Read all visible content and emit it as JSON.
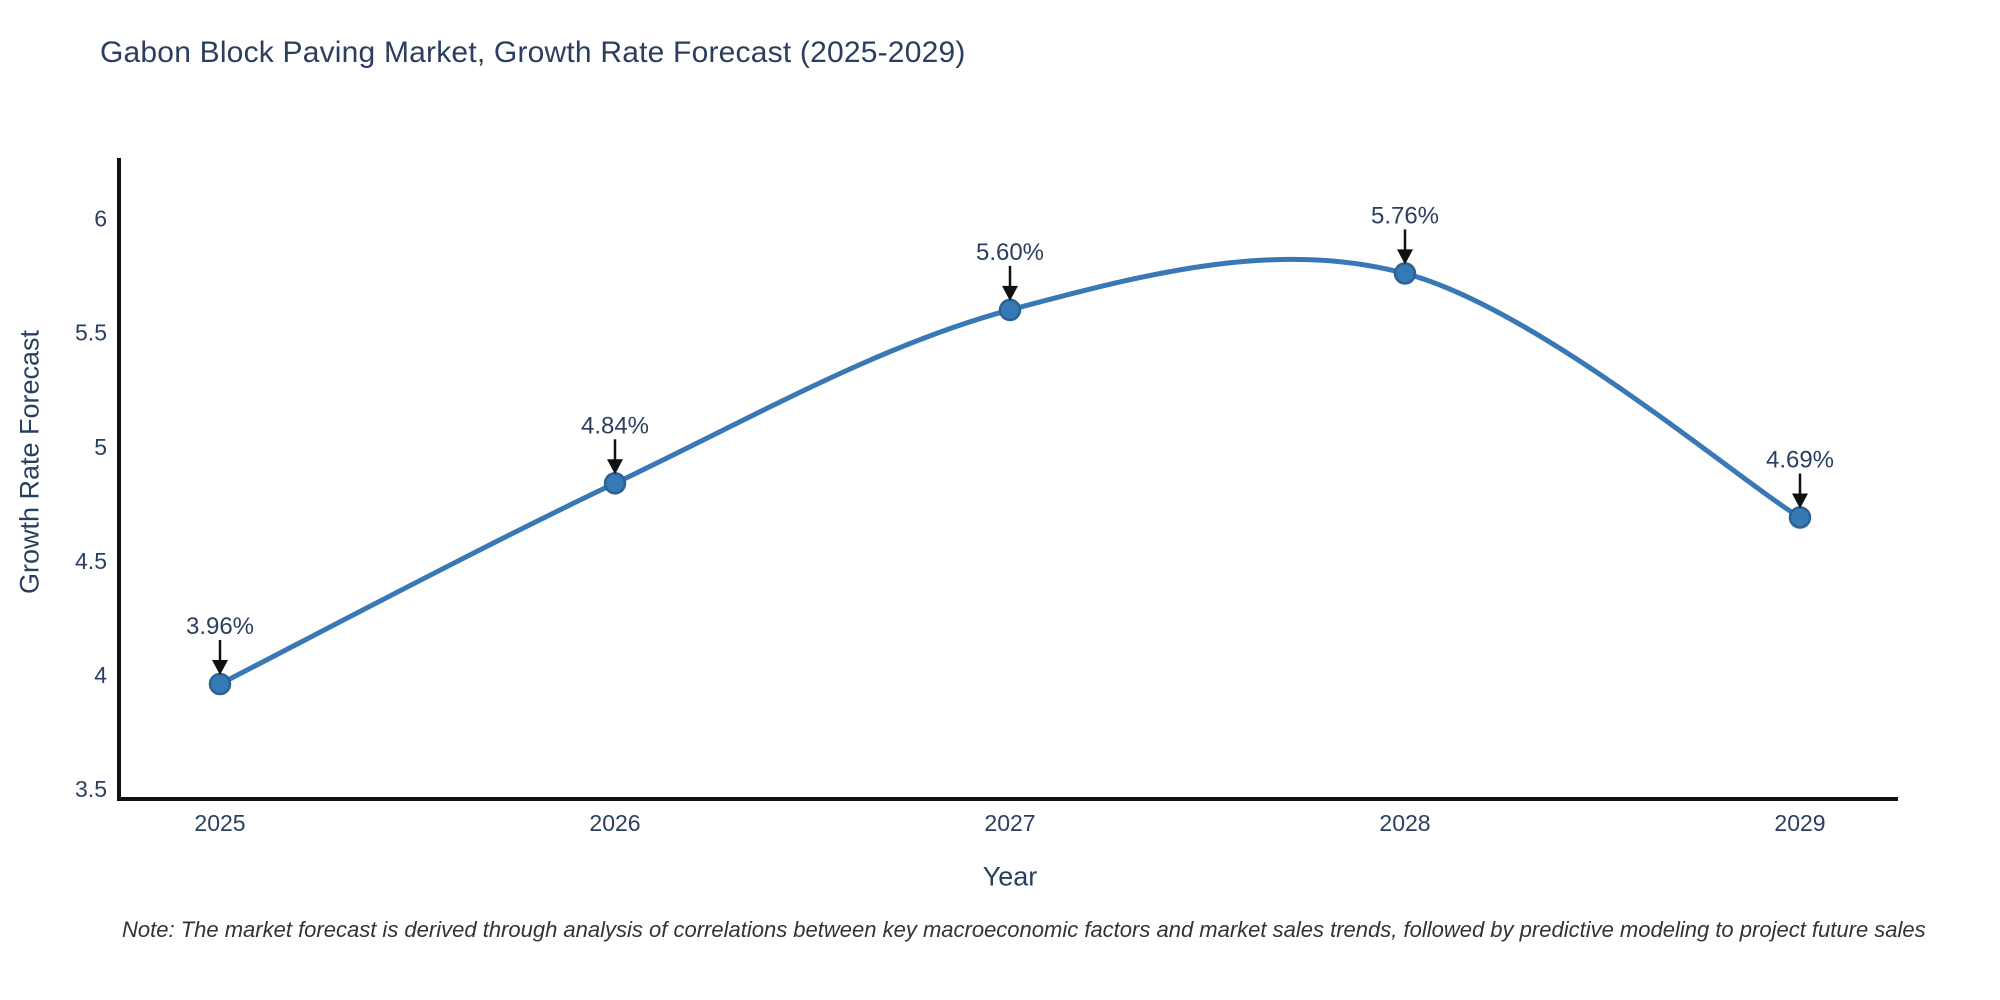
{
  "page": {
    "note": "Note: The market forecast is derived through analysis of correlations between key macroeconomic factors and market sales trends, followed by predictive modeling to project future sales"
  },
  "colors": {
    "title_text": "#2a3f5f",
    "tick_text": "#2a3f5f",
    "annotation_text": "#2a3f5f",
    "axis_line": "#111111",
    "line": "#3878b4",
    "marker_fill": "#3579b5",
    "marker_edge": "#2b6293",
    "arrow": "#111111",
    "note_text": "#333333",
    "background": "#ffffff"
  },
  "chart_data": {
    "type": "line",
    "title": "Gabon Block Paving Market, Growth Rate Forecast (2025-2029)",
    "xlabel": "Year",
    "ylabel": "Growth Rate Forecast",
    "x": [
      2025,
      2026,
      2027,
      2028,
      2029
    ],
    "series": [
      {
        "name": "Growth Rate Forecast",
        "values": [
          3.96,
          4.84,
          5.6,
          5.76,
          4.69
        ]
      }
    ],
    "point_labels": [
      "3.96%",
      "4.84%",
      "5.60%",
      "5.76%",
      "4.69%"
    ],
    "yticks": [
      3.5,
      4,
      4.5,
      5,
      5.5,
      6
    ],
    "ytick_labels": [
      "3.5",
      "4",
      "4.5",
      "5",
      "5.5",
      "6"
    ],
    "ylim": [
      3.456,
      6.266
    ],
    "line_shape": "spline",
    "markers": true,
    "grid": false,
    "legend_position": "none",
    "annotation_style": "value-label-with-down-arrow"
  }
}
